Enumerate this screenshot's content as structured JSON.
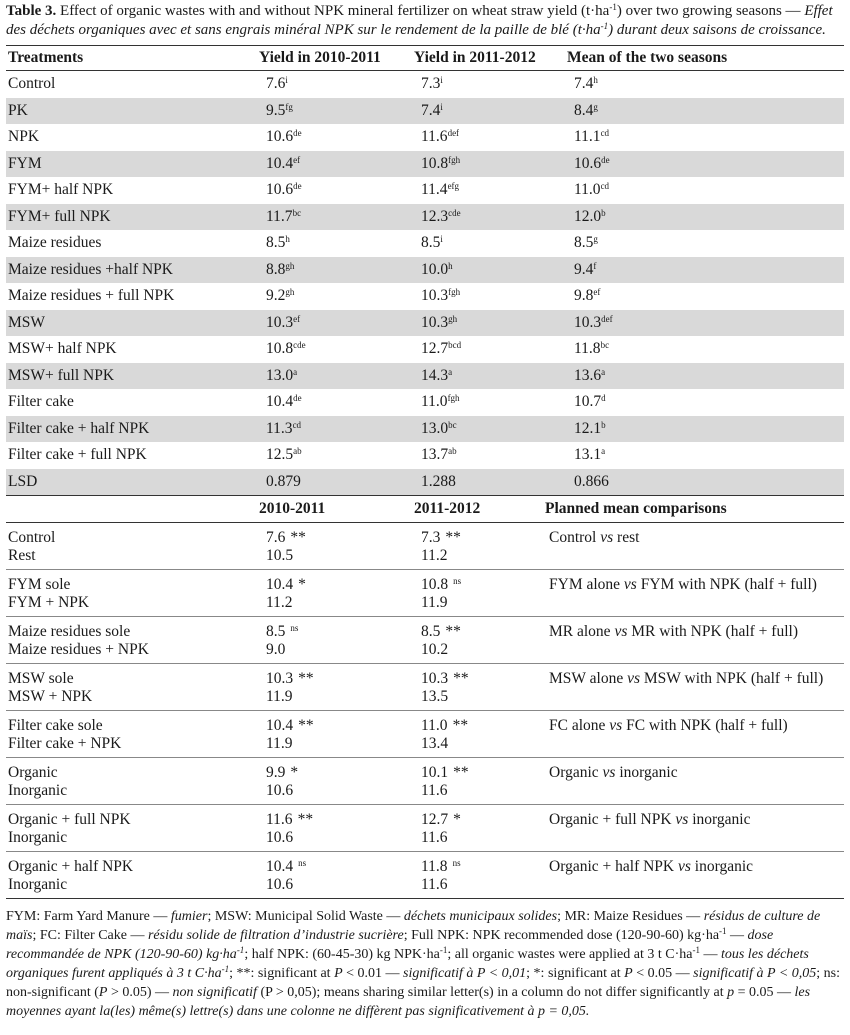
{
  "caption": [
    {
      "text": "Table 3.",
      "style": "b"
    },
    {
      "text": " Effect of organic wastes with and without NPK mineral fertilizer on wheat straw yield (t·ha",
      "style": "n"
    },
    {
      "text": "-1",
      "style": "sup"
    },
    {
      "text": ") over two growing seasons — ",
      "style": "n"
    },
    {
      "text": "Effet des déchets organiques avec et sans engrais minéral NPK sur le rendement de la paille de blé (t·ha",
      "style": "i"
    },
    {
      "text": "-1",
      "style": "isup"
    },
    {
      "text": ") durant deux saisons de croissance.",
      "style": "i"
    }
  ],
  "table": {
    "header": [
      "Treatments",
      "Yield in 2010-2011",
      "Yield in 2011-2012",
      "Mean of the two seasons"
    ],
    "rows": [
      [
        "Control",
        {
          "value": "7.6",
          "letters": "i"
        },
        {
          "value": "7.3",
          "letters": "i"
        },
        {
          "value": "7.4",
          "letters": "h"
        }
      ],
      [
        "PK",
        {
          "value": "9.5",
          "letters": "fg"
        },
        {
          "value": "7.4",
          "letters": "i"
        },
        {
          "value": "8.4",
          "letters": "g"
        }
      ],
      [
        "NPK",
        {
          "value": "10.6",
          "letters": "de"
        },
        {
          "value": "11.6",
          "letters": "def"
        },
        {
          "value": "11.1",
          "letters": "cd"
        }
      ],
      [
        "FYM",
        {
          "value": "10.4",
          "letters": "ef"
        },
        {
          "value": "10.8",
          "letters": "fgh"
        },
        {
          "value": "10.6",
          "letters": "de"
        }
      ],
      [
        "FYM+ half NPK",
        {
          "value": "10.6",
          "letters": "de"
        },
        {
          "value": "11.4",
          "letters": "efg"
        },
        {
          "value": "11.0",
          "letters": "cd"
        }
      ],
      [
        "FYM+ full NPK",
        {
          "value": "11.7",
          "letters": "bc"
        },
        {
          "value": "12.3",
          "letters": "cde"
        },
        {
          "value": "12.0",
          "letters": "b"
        }
      ],
      [
        "Maize residues",
        {
          "value": "8.5",
          "letters": "h"
        },
        {
          "value": "8.5",
          "letters": "i"
        },
        {
          "value": "8.5",
          "letters": "g"
        }
      ],
      [
        "Maize residues +half NPK",
        {
          "value": "8.8",
          "letters": "gh"
        },
        {
          "value": "10.0",
          "letters": "h"
        },
        {
          "value": "9.4",
          "letters": "f"
        }
      ],
      [
        "Maize residues + full NPK",
        {
          "value": "9.2",
          "letters": "gh"
        },
        {
          "value": "10.3",
          "letters": "fgh"
        },
        {
          "value": "9.8",
          "letters": "ef"
        }
      ],
      [
        "MSW",
        {
          "value": "10.3",
          "letters": "ef"
        },
        {
          "value": "10.3",
          "letters": "gh"
        },
        {
          "value": "10.3",
          "letters": "def"
        }
      ],
      [
        "MSW+ half NPK",
        {
          "value": "10.8",
          "letters": "cde"
        },
        {
          "value": "12.7",
          "letters": "bcd"
        },
        {
          "value": "11.8",
          "letters": "bc"
        }
      ],
      [
        "MSW+ full NPK",
        {
          "value": "13.0",
          "letters": "a"
        },
        {
          "value": "14.3",
          "letters": "a"
        },
        {
          "value": "13.6",
          "letters": "a"
        }
      ],
      [
        "Filter cake",
        {
          "value": "10.4",
          "letters": "de"
        },
        {
          "value": "11.0",
          "letters": "fgh"
        },
        {
          "value": "10.7",
          "letters": "d"
        }
      ],
      [
        "Filter cake + half NPK",
        {
          "value": "11.3",
          "letters": "cd"
        },
        {
          "value": "13.0",
          "letters": "bc"
        },
        {
          "value": "12.1",
          "letters": "b"
        }
      ],
      [
        "Filter cake + full NPK",
        {
          "value": "12.5",
          "letters": "ab"
        },
        {
          "value": "13.7",
          "letters": "ab"
        },
        {
          "value": "13.1",
          "letters": "a"
        }
      ],
      [
        "LSD",
        {
          "value": "0.879"
        },
        {
          "value": "1.288"
        },
        {
          "value": "0.866"
        }
      ]
    ]
  },
  "comparisons": {
    "header": [
      "2010-2011",
      "2011-2012",
      "Planned mean comparisons"
    ],
    "groups": [
      {
        "rows": [
          [
            "Control",
            {
              "value": "7.6",
              "sig": "**"
            },
            {
              "value": "7.3",
              "sig": "**"
            }
          ],
          [
            "Rest",
            {
              "value": "10.5"
            },
            {
              "value": "11.2"
            }
          ]
        ],
        "comparison": [
          {
            "text": "Control ",
            "style": "n"
          },
          {
            "text": "vs",
            "style": "i"
          },
          {
            "text": " rest",
            "style": "n"
          }
        ]
      },
      {
        "rows": [
          [
            "FYM sole",
            {
              "value": "10.4",
              "sig": "*"
            },
            {
              "value": "10.8",
              "sig": "ns"
            }
          ],
          [
            "FYM + NPK",
            {
              "value": "11.2"
            },
            {
              "value": "11.9"
            }
          ]
        ],
        "comparison": [
          {
            "text": "FYM alone ",
            "style": "n"
          },
          {
            "text": "vs",
            "style": "i"
          },
          {
            "text": " FYM with NPK (half + full)",
            "style": "n"
          }
        ]
      },
      {
        "rows": [
          [
            "Maize residues sole",
            {
              "value": "8.5",
              "sig": "ns"
            },
            {
              "value": "8.5",
              "sig": "**"
            }
          ],
          [
            "Maize residues + NPK",
            {
              "value": "9.0"
            },
            {
              "value": "10.2"
            }
          ]
        ],
        "comparison": [
          {
            "text": "MR alone ",
            "style": "n"
          },
          {
            "text": "vs",
            "style": "i"
          },
          {
            "text": " MR with NPK (half + full)",
            "style": "n"
          }
        ]
      },
      {
        "rows": [
          [
            "MSW sole",
            {
              "value": "10.3",
              "sig": "**"
            },
            {
              "value": "10.3",
              "sig": "**"
            }
          ],
          [
            "MSW + NPK",
            {
              "value": "11.9"
            },
            {
              "value": "13.5"
            }
          ]
        ],
        "comparison": [
          {
            "text": "MSW alone ",
            "style": "n"
          },
          {
            "text": "vs",
            "style": "i"
          },
          {
            "text": " MSW with NPK (half + full)",
            "style": "n"
          }
        ]
      },
      {
        "rows": [
          [
            "Filter cake sole",
            {
              "value": "10.4",
              "sig": "**"
            },
            {
              "value": "11.0",
              "sig": "**"
            }
          ],
          [
            "Filter cake + NPK",
            {
              "value": "11.9"
            },
            {
              "value": "13.4"
            }
          ]
        ],
        "comparison": [
          {
            "text": "FC alone ",
            "style": "n"
          },
          {
            "text": "vs",
            "style": "i"
          },
          {
            "text": " FC with NPK (half + full)",
            "style": "n"
          }
        ]
      },
      {
        "rows": [
          [
            "Organic",
            {
              "value": "9.9",
              "sig": "*"
            },
            {
              "value": "10.1",
              "sig": "**"
            }
          ],
          [
            "Inorganic",
            {
              "value": "10.6"
            },
            {
              "value": "11.6"
            }
          ]
        ],
        "comparison": [
          {
            "text": "Organic ",
            "style": "n"
          },
          {
            "text": "vs",
            "style": "i"
          },
          {
            "text": " inorganic",
            "style": "n"
          }
        ]
      },
      {
        "rows": [
          [
            "Organic + full NPK",
            {
              "value": "11.6",
              "sig": "**"
            },
            {
              "value": "12.7",
              "sig": "*"
            }
          ],
          [
            "Inorganic",
            {
              "value": "10.6"
            },
            {
              "value": "11.6"
            }
          ]
        ],
        "comparison": [
          {
            "text": "Organic + full NPK ",
            "style": "n"
          },
          {
            "text": "vs",
            "style": "i"
          },
          {
            "text": " inorganic",
            "style": "n"
          }
        ]
      },
      {
        "rows": [
          [
            "Organic + half NPK",
            {
              "value": "10.4",
              "sig": "ns"
            },
            {
              "value": "11.8",
              "sig": "ns"
            }
          ],
          [
            "Inorganic",
            {
              "value": "10.6"
            },
            {
              "value": "11.6"
            }
          ]
        ],
        "comparison": [
          {
            "text": "Organic + half NPK ",
            "style": "n"
          },
          {
            "text": "vs",
            "style": "i"
          },
          {
            "text": " inorganic",
            "style": "n"
          }
        ]
      }
    ]
  },
  "footnote": [
    {
      "text": "FYM: Farm Yard Manure — ",
      "style": "n"
    },
    {
      "text": "fumier",
      "style": "i"
    },
    {
      "text": "; MSW: Municipal Solid Waste — ",
      "style": "n"
    },
    {
      "text": "déchets municipaux solides",
      "style": "i"
    },
    {
      "text": "; MR: Maize Residues — ",
      "style": "n"
    },
    {
      "text": "résidus de culture de maïs",
      "style": "i"
    },
    {
      "text": "; FC: Filter Cake — ",
      "style": "n"
    },
    {
      "text": "résidu solide de filtration d’industrie sucrière",
      "style": "i"
    },
    {
      "text": "; Full NPK: NPK recommended dose (120-90-60) kg·ha",
      "style": "n"
    },
    {
      "text": "-1",
      "style": "sup"
    },
    {
      "text": " — ",
      "style": "n"
    },
    {
      "text": "dose recommandée de NPK (120-90-60) kg·ha",
      "style": "i"
    },
    {
      "text": "-1",
      "style": "isup"
    },
    {
      "text": "; half NPK: (60-45-30) kg NPK·ha",
      "style": "n"
    },
    {
      "text": "-1",
      "style": "sup"
    },
    {
      "text": "; all organic wastes were applied at 3 t C·ha",
      "style": "n"
    },
    {
      "text": "-1",
      "style": "sup"
    },
    {
      "text": " — ",
      "style": "n"
    },
    {
      "text": "tous les déchets organiques furent appliqués à 3 t C·ha",
      "style": "i"
    },
    {
      "text": "-1",
      "style": "isup"
    },
    {
      "text": "; **: significant at ",
      "style": "n"
    },
    {
      "text": "P",
      "style": "i"
    },
    {
      "text": " < 0.01 — ",
      "style": "n"
    },
    {
      "text": "significatif à P < 0,01",
      "style": "i"
    },
    {
      "text": "; *: significant at ",
      "style": "n"
    },
    {
      "text": "P",
      "style": "i"
    },
    {
      "text": " < 0.05 — ",
      "style": "n"
    },
    {
      "text": "significatif à P < 0,05",
      "style": "i"
    },
    {
      "text": "; ns: non-significant (",
      "style": "n"
    },
    {
      "text": "P",
      "style": "i"
    },
    {
      "text": " > 0.05) — ",
      "style": "n"
    },
    {
      "text": "non significatif",
      "style": "i"
    },
    {
      "text": " (P > 0,05); means sharing similar letter(s) in a column do not differ significantly at ",
      "style": "n"
    },
    {
      "text": "p",
      "style": "i"
    },
    {
      "text": " = 0.05 — ",
      "style": "n"
    },
    {
      "text": "les moyennes ayant la(les) même(s) lettre(s) dans une colonne ne diffèrent pas significativement à p = 0,05.",
      "style": "i"
    }
  ]
}
